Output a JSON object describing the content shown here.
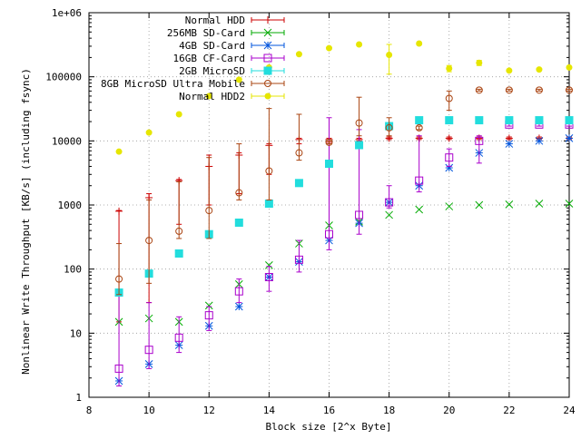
{
  "chart_data": {
    "type": "scatter",
    "title": "",
    "xlabel": "Block size [2^x Byte]",
    "ylabel": "Nonlinear Write Throughput [KB/s] (including fsync)",
    "xlim": [
      8,
      24
    ],
    "ylim": [
      1,
      1000000
    ],
    "yscale": "log",
    "grid": true,
    "legend_position": "top-left",
    "x_ticks": [
      8,
      10,
      12,
      14,
      16,
      18,
      20,
      22,
      24
    ],
    "x_tick_labels": [
      "8",
      "10",
      "12",
      "14",
      "16",
      "18",
      "20",
      "22",
      "24"
    ],
    "y_ticks": [
      1,
      10,
      100,
      1000,
      10000,
      100000,
      1000000
    ],
    "y_tick_labels": [
      "1",
      "10",
      "100",
      "1000",
      "10000",
      "100000",
      "1e+06"
    ],
    "series": [
      {
        "name": "Normal HDD",
        "color": "#cc0000",
        "marker": "plus",
        "points": [
          {
            "x": 9,
            "y": 800,
            "lo": 15,
            "hi": 820
          },
          {
            "x": 10,
            "y": 1300,
            "lo": 30,
            "hi": 1500
          },
          {
            "x": 11,
            "y": 2400,
            "lo": 500,
            "hi": 2500
          },
          {
            "x": 12,
            "y": 4000,
            "lo": 1000,
            "hi": 6000
          },
          {
            "x": 13,
            "y": 6000,
            "lo": 1500,
            "hi": 6500
          },
          {
            "x": 14,
            "y": 8500,
            "lo": 3000,
            "hi": 9000
          },
          {
            "x": 15,
            "y": 10500,
            "lo": 9000,
            "hi": 11000
          },
          {
            "x": 16,
            "y": 10500,
            "lo": 9500,
            "hi": 11000
          },
          {
            "x": 17,
            "y": 10500,
            "lo": 10000,
            "hi": 11000
          },
          {
            "x": 18,
            "y": 11000,
            "lo": 10500,
            "hi": 11500
          },
          {
            "x": 19,
            "y": 11000,
            "lo": 10500,
            "hi": 11500
          },
          {
            "x": 20,
            "y": 11000,
            "lo": 10500,
            "hi": 11500
          },
          {
            "x": 21,
            "y": 11000,
            "lo": 10500,
            "hi": 11500
          },
          {
            "x": 22,
            "y": 11000,
            "lo": 10500,
            "hi": 11500
          },
          {
            "x": 23,
            "y": 11000,
            "lo": 10500,
            "hi": 11500
          },
          {
            "x": 24,
            "y": 11000,
            "lo": 10500,
            "hi": 11500
          }
        ]
      },
      {
        "name": "256MB SD-Card",
        "color": "#00aa00",
        "marker": "x",
        "points": [
          {
            "x": 9,
            "y": 15
          },
          {
            "x": 10,
            "y": 17
          },
          {
            "x": 11,
            "y": 15
          },
          {
            "x": 12,
            "y": 27
          },
          {
            "x": 13,
            "y": 58
          },
          {
            "x": 14,
            "y": 115
          },
          {
            "x": 15,
            "y": 250
          },
          {
            "x": 16,
            "y": 480
          },
          {
            "x": 17,
            "y": 550
          },
          {
            "x": 18,
            "y": 700
          },
          {
            "x": 19,
            "y": 850
          },
          {
            "x": 20,
            "y": 950
          },
          {
            "x": 21,
            "y": 1000
          },
          {
            "x": 22,
            "y": 1020
          },
          {
            "x": 23,
            "y": 1050
          },
          {
            "x": 24,
            "y": 1050
          }
        ]
      },
      {
        "name": "4GB SD-Card",
        "color": "#0055dd",
        "marker": "star",
        "points": [
          {
            "x": 9,
            "y": 1.8
          },
          {
            "x": 10,
            "y": 3.3
          },
          {
            "x": 11,
            "y": 6.5
          },
          {
            "x": 12,
            "y": 13
          },
          {
            "x": 13,
            "y": 26
          },
          {
            "x": 14,
            "y": 75
          },
          {
            "x": 15,
            "y": 130
          },
          {
            "x": 16,
            "y": 280
          },
          {
            "x": 17,
            "y": 520
          },
          {
            "x": 18,
            "y": 1100
          },
          {
            "x": 19,
            "y": 2000
          },
          {
            "x": 20,
            "y": 3800
          },
          {
            "x": 21,
            "y": 6500
          },
          {
            "x": 22,
            "y": 9000
          },
          {
            "x": 23,
            "y": 10000
          },
          {
            "x": 24,
            "y": 11000
          }
        ]
      },
      {
        "name": "16GB CF-Card",
        "color": "#aa00cc",
        "marker": "square",
        "points": [
          {
            "x": 9,
            "y": 2.8,
            "lo": 1.5,
            "hi": 45
          },
          {
            "x": 10,
            "y": 5.5,
            "lo": 2.8,
            "hi": 30
          },
          {
            "x": 11,
            "y": 8.5,
            "lo": 5,
            "hi": 18
          },
          {
            "x": 12,
            "y": 19,
            "lo": 11,
            "hi": 26
          },
          {
            "x": 13,
            "y": 45,
            "lo": 30,
            "hi": 70
          },
          {
            "x": 14,
            "y": 75,
            "lo": 45,
            "hi": 110
          },
          {
            "x": 15,
            "y": 140,
            "lo": 90,
            "hi": 280
          },
          {
            "x": 16,
            "y": 350,
            "lo": 200,
            "hi": 23000
          },
          {
            "x": 17,
            "y": 700,
            "lo": 350,
            "hi": 15000
          },
          {
            "x": 18,
            "y": 1100,
            "lo": 900,
            "hi": 2000
          },
          {
            "x": 19,
            "y": 2400,
            "lo": 1600,
            "hi": 12000
          },
          {
            "x": 20,
            "y": 5500,
            "lo": 4000,
            "hi": 7500
          },
          {
            "x": 21,
            "y": 10000,
            "lo": 4500,
            "hi": 12000
          },
          {
            "x": 22,
            "y": 18000,
            "lo": 17000,
            "hi": 19000
          },
          {
            "x": 23,
            "y": 18000,
            "lo": 17000,
            "hi": 19000
          },
          {
            "x": 24,
            "y": 18000,
            "lo": 17000,
            "hi": 19000
          }
        ]
      },
      {
        "name": "2GB MicroSD",
        "color": "#22dddd",
        "marker": "filled-square",
        "points": [
          {
            "x": 9,
            "y": 43
          },
          {
            "x": 10,
            "y": 85
          },
          {
            "x": 11,
            "y": 175
          },
          {
            "x": 12,
            "y": 350
          },
          {
            "x": 13,
            "y": 530
          },
          {
            "x": 14,
            "y": 1050
          },
          {
            "x": 15,
            "y": 2200
          },
          {
            "x": 16,
            "y": 4400
          },
          {
            "x": 17,
            "y": 8600
          },
          {
            "x": 18,
            "y": 17000
          },
          {
            "x": 19,
            "y": 21000
          },
          {
            "x": 20,
            "y": 21000
          },
          {
            "x": 21,
            "y": 21000
          },
          {
            "x": 22,
            "y": 21000
          },
          {
            "x": 23,
            "y": 21000
          },
          {
            "x": 24,
            "y": 21000
          }
        ]
      },
      {
        "name": "8GB MicroSD Ultra Mobile",
        "color": "#aa4411",
        "marker": "circle",
        "points": [
          {
            "x": 9,
            "y": 70,
            "lo": 40,
            "hi": 250
          },
          {
            "x": 10,
            "y": 280,
            "lo": 60,
            "hi": 1200
          },
          {
            "x": 11,
            "y": 390,
            "lo": 300,
            "hi": 2300
          },
          {
            "x": 12,
            "y": 820,
            "lo": 300,
            "hi": 5500
          },
          {
            "x": 13,
            "y": 1550,
            "lo": 1200,
            "hi": 9000
          },
          {
            "x": 14,
            "y": 3400,
            "lo": 1200,
            "hi": 32000
          },
          {
            "x": 15,
            "y": 6500,
            "lo": 5000,
            "hi": 26000
          },
          {
            "x": 16,
            "y": 9500,
            "lo": 9000,
            "hi": 10000
          },
          {
            "x": 17,
            "y": 19000,
            "lo": 12000,
            "hi": 48000
          },
          {
            "x": 18,
            "y": 16000,
            "lo": 12000,
            "hi": 23000
          },
          {
            "x": 19,
            "y": 16000,
            "lo": 15000,
            "hi": 17000
          },
          {
            "x": 20,
            "y": 46000,
            "lo": 30000,
            "hi": 60000
          },
          {
            "x": 21,
            "y": 62000,
            "lo": 60000,
            "hi": 64000
          },
          {
            "x": 22,
            "y": 62000,
            "lo": 60000,
            "hi": 64000
          },
          {
            "x": 23,
            "y": 62000,
            "lo": 60000,
            "hi": 64000
          },
          {
            "x": 24,
            "y": 62000,
            "lo": 60000,
            "hi": 64000
          }
        ]
      },
      {
        "name": "Normal HDD2",
        "color": "#e6e600",
        "marker": "filled-circle",
        "points": [
          {
            "x": 9,
            "y": 6800
          },
          {
            "x": 10,
            "y": 13500
          },
          {
            "x": 11,
            "y": 26000
          },
          {
            "x": 12,
            "y": 50000
          },
          {
            "x": 13,
            "y": 90000
          },
          {
            "x": 14,
            "y": 140000
          },
          {
            "x": 15,
            "y": 225000
          },
          {
            "x": 16,
            "y": 280000
          },
          {
            "x": 17,
            "y": 320000
          },
          {
            "x": 18,
            "y": 220000,
            "lo": 110000,
            "hi": 320000
          },
          {
            "x": 19,
            "y": 330000
          },
          {
            "x": 20,
            "y": 135000,
            "lo": 120000,
            "hi": 150000
          },
          {
            "x": 21,
            "y": 165000,
            "lo": 150000,
            "hi": 180000
          },
          {
            "x": 22,
            "y": 125000
          },
          {
            "x": 23,
            "y": 130000
          },
          {
            "x": 24,
            "y": 140000
          }
        ]
      }
    ]
  }
}
